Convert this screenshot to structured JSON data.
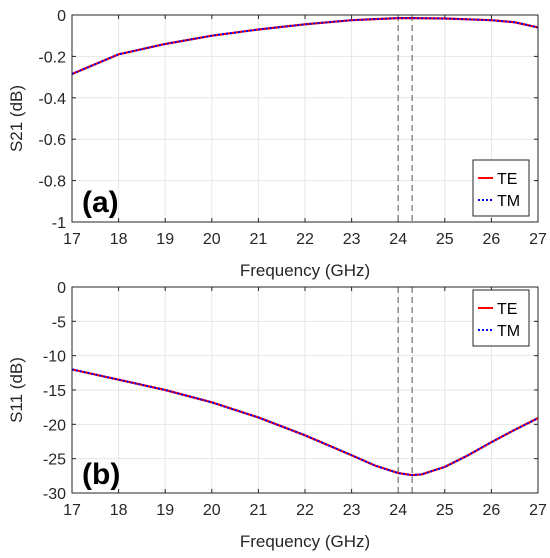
{
  "chart_data": [
    {
      "type": "line",
      "panel_label": "(a)",
      "xlabel": "Frequency (GHz)",
      "ylabel": "S21 (dB)",
      "xlim": [
        17,
        27
      ],
      "ylim": [
        -1,
        0
      ],
      "xticks": [
        "17",
        "18",
        "19",
        "20",
        "21",
        "22",
        "23",
        "24",
        "25",
        "26",
        "27"
      ],
      "yticks": [
        "0",
        "-0.2",
        "-0.4",
        "-0.6",
        "-0.8",
        "-1"
      ],
      "grid": true,
      "legend_position": "bottom-right",
      "vlines": [
        24.0,
        24.3
      ],
      "series": [
        {
          "name": "TE",
          "color": "#ff0000",
          "style": "solid",
          "x": [
            17,
            18,
            19,
            20,
            21,
            22,
            23,
            23.5,
            24,
            24.3,
            25,
            26,
            26.5,
            27
          ],
          "y": [
            -0.285,
            -0.19,
            -0.14,
            -0.1,
            -0.07,
            -0.045,
            -0.025,
            -0.02,
            -0.015,
            -0.015,
            -0.017,
            -0.025,
            -0.035,
            -0.06
          ]
        },
        {
          "name": "TM",
          "color": "#0000ff",
          "style": "dotted",
          "x": [
            17,
            18,
            19,
            20,
            21,
            22,
            23,
            23.5,
            24,
            24.3,
            25,
            26,
            26.5,
            27
          ],
          "y": [
            -0.285,
            -0.19,
            -0.14,
            -0.1,
            -0.07,
            -0.045,
            -0.025,
            -0.02,
            -0.015,
            -0.015,
            -0.017,
            -0.025,
            -0.035,
            -0.06
          ]
        }
      ]
    },
    {
      "type": "line",
      "panel_label": "(b)",
      "xlabel": "Frequency (GHz)",
      "ylabel": "S11 (dB)",
      "xlim": [
        17,
        27
      ],
      "ylim": [
        -30,
        0
      ],
      "xticks": [
        "17",
        "18",
        "19",
        "20",
        "21",
        "22",
        "23",
        "24",
        "25",
        "26",
        "27"
      ],
      "yticks": [
        "0",
        "-5",
        "-10",
        "-15",
        "-20",
        "-25",
        "-30"
      ],
      "grid": true,
      "legend_position": "top-right",
      "vlines": [
        24.0,
        24.3
      ],
      "series": [
        {
          "name": "TE",
          "color": "#ff0000",
          "style": "solid",
          "x": [
            17,
            18,
            19,
            20,
            21,
            22,
            23,
            23.5,
            24,
            24.3,
            24.5,
            25,
            25.5,
            26,
            26.5,
            27
          ],
          "y": [
            -12,
            -13.5,
            -15,
            -16.8,
            -19,
            -21.6,
            -24.5,
            -26,
            -27.1,
            -27.4,
            -27.3,
            -26.2,
            -24.5,
            -22.6,
            -20.8,
            -19.1
          ]
        },
        {
          "name": "TM",
          "color": "#0000ff",
          "style": "dotted",
          "x": [
            17,
            18,
            19,
            20,
            21,
            22,
            23,
            23.5,
            24,
            24.3,
            24.5,
            25,
            25.5,
            26,
            26.5,
            27
          ],
          "y": [
            -12,
            -13.5,
            -15,
            -16.8,
            -19,
            -21.6,
            -24.5,
            -26,
            -27.1,
            -27.4,
            -27.3,
            -26.2,
            -24.5,
            -22.6,
            -20.8,
            -19.1
          ]
        }
      ]
    }
  ]
}
